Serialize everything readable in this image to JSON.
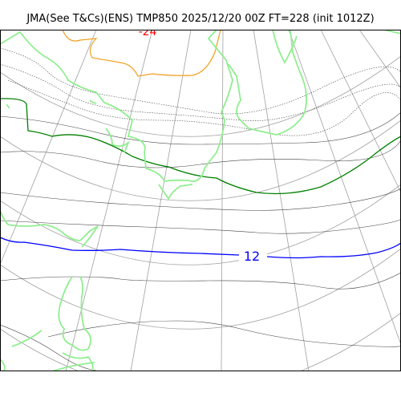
{
  "header": {
    "title": "JMA(See T&Cs)(ENS) TMP850 2025/12/20 00Z FT=228 (init 1012Z)"
  },
  "map": {
    "variable": "TMP850",
    "contour_labels": [
      {
        "text": "12",
        "color": "#0000ff"
      },
      {
        "text": "-24",
        "color": "#ff0000"
      }
    ],
    "colors": {
      "coast": "#90ee90",
      "grid": "#a0a0a0",
      "isotherm_12": "#0000ff",
      "isotherm_warm": "#008000",
      "isotherm_cold": "#f0a020",
      "isotherm_other": "#444444",
      "frame": "#000000",
      "label_cold": "#ff0000"
    }
  }
}
